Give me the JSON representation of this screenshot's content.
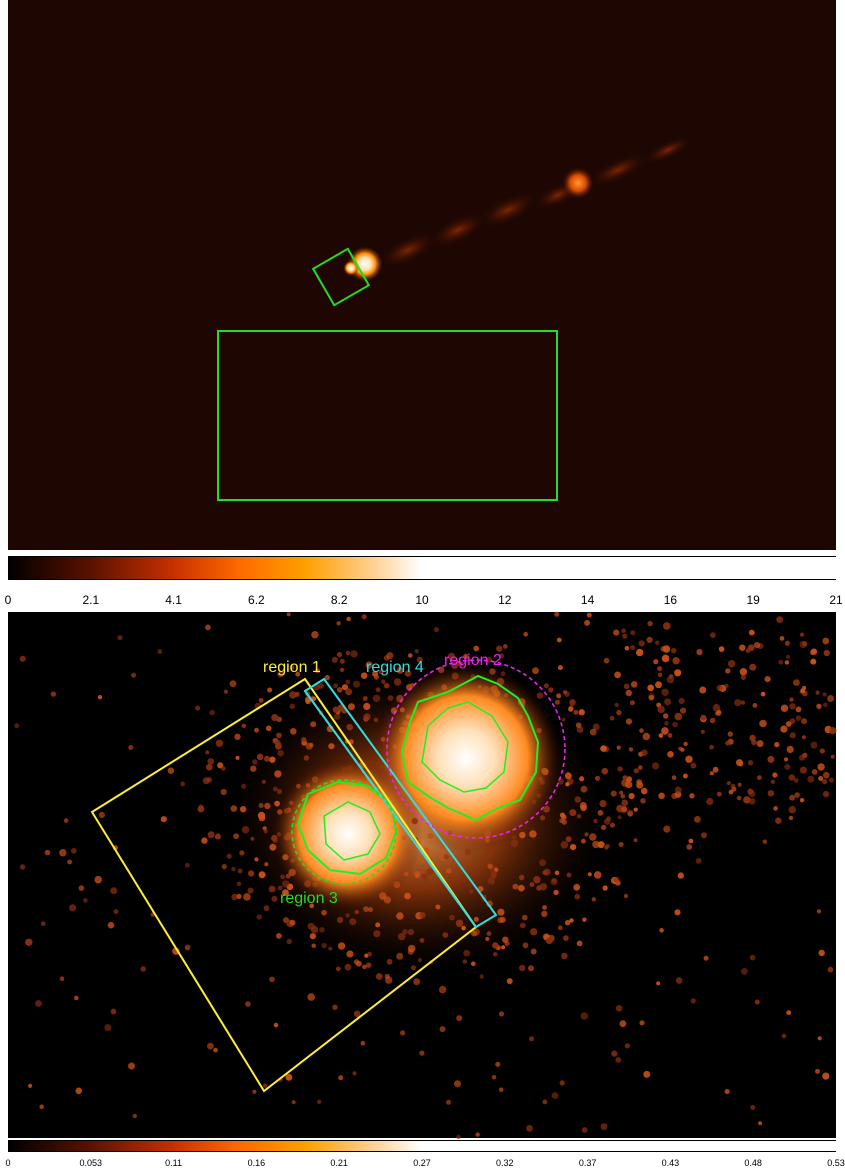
{
  "top_image": {
    "colormap": [
      "#000000",
      "#5a0f00",
      "#d93b00",
      "#ff8a00",
      "#ffd08a",
      "#ffffff"
    ],
    "region_color": "#22dd22",
    "colorbar_ticks": [
      "0",
      "2.1",
      "4.1",
      "6.2",
      "8.2",
      "10",
      "12",
      "14",
      "16",
      "19",
      "21"
    ]
  },
  "bottom_image": {
    "regions": [
      {
        "label": "region 1",
        "color": "#ffee33"
      },
      {
        "label": "region 4",
        "color": "#33dddd"
      },
      {
        "label": "region 2",
        "color": "#ee22ee"
      },
      {
        "label": "region 3",
        "color": "#22dd22"
      }
    ],
    "contour_color": "#22ee22",
    "colorbar_ticks": [
      "0",
      "0.053",
      "0.11",
      "0.16",
      "0.21",
      "0.27",
      "0.32",
      "0.37",
      "0.43",
      "0.48",
      "0.53"
    ]
  }
}
